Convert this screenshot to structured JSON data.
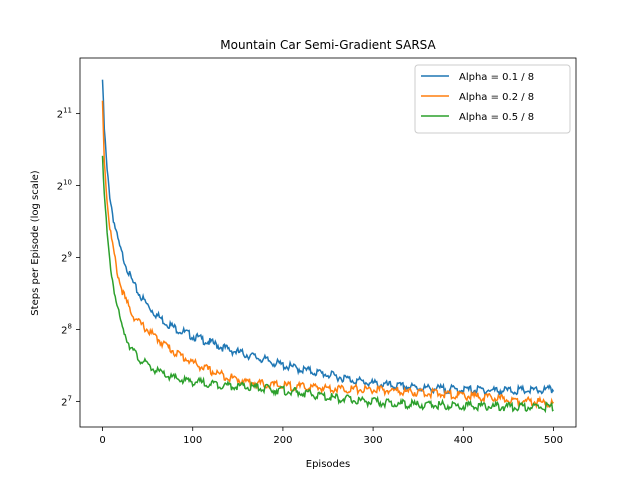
{
  "chart_data": {
    "type": "line",
    "title": "Mountain Car Semi-Gradient SARSA",
    "xlabel": "Episodes",
    "ylabel": "Steps per Episode (log scale)",
    "xlim": [
      -25,
      525
    ],
    "ylim": [
      100,
      3500
    ],
    "y_scale": "log2",
    "x_ticks": [
      0,
      100,
      200,
      300,
      400,
      500
    ],
    "y_ticks": [
      128,
      256,
      512,
      1024,
      2048
    ],
    "y_tick_base": "2",
    "y_tick_exponents": [
      "7",
      "8",
      "9",
      "10",
      "11"
    ],
    "grid": false,
    "legend_position": "top-right",
    "series": [
      {
        "name": "Alpha = 0.1 / 8",
        "color": "#1f77b4",
        "points": [
          [
            0,
            2900
          ],
          [
            2,
            1800
          ],
          [
            5,
            1200
          ],
          [
            8,
            950
          ],
          [
            12,
            760
          ],
          [
            16,
            640
          ],
          [
            20,
            560
          ],
          [
            25,
            500
          ],
          [
            30,
            440
          ],
          [
            35,
            400
          ],
          [
            40,
            370
          ],
          [
            50,
            330
          ],
          [
            60,
            300
          ],
          [
            70,
            280
          ],
          [
            80,
            265
          ],
          [
            90,
            255
          ],
          [
            100,
            245
          ],
          [
            120,
            230
          ],
          [
            140,
            215
          ],
          [
            160,
            205
          ],
          [
            180,
            195
          ],
          [
            200,
            185
          ],
          [
            220,
            178
          ],
          [
            240,
            172
          ],
          [
            260,
            166
          ],
          [
            280,
            160
          ],
          [
            300,
            155
          ],
          [
            320,
            152
          ],
          [
            340,
            150
          ],
          [
            360,
            148
          ],
          [
            380,
            147
          ],
          [
            400,
            146
          ],
          [
            420,
            146
          ],
          [
            440,
            145
          ],
          [
            460,
            145
          ],
          [
            480,
            145
          ],
          [
            500,
            146
          ]
        ]
      },
      {
        "name": "Alpha = 0.2 / 8",
        "color": "#ff7f0e",
        "points": [
          [
            0,
            2350
          ],
          [
            2,
            1350
          ],
          [
            5,
            900
          ],
          [
            8,
            700
          ],
          [
            12,
            560
          ],
          [
            16,
            460
          ],
          [
            20,
            400
          ],
          [
            25,
            350
          ],
          [
            30,
            320
          ],
          [
            35,
            295
          ],
          [
            40,
            280
          ],
          [
            50,
            260
          ],
          [
            60,
            240
          ],
          [
            70,
            225
          ],
          [
            80,
            210
          ],
          [
            90,
            200
          ],
          [
            100,
            190
          ],
          [
            120,
            175
          ],
          [
            140,
            165
          ],
          [
            160,
            158
          ],
          [
            180,
            154
          ],
          [
            200,
            152
          ],
          [
            220,
            150
          ],
          [
            240,
            149
          ],
          [
            260,
            148
          ],
          [
            280,
            147
          ],
          [
            300,
            146
          ],
          [
            320,
            145
          ],
          [
            340,
            143
          ],
          [
            360,
            142
          ],
          [
            380,
            140
          ],
          [
            400,
            138
          ],
          [
            420,
            136
          ],
          [
            440,
            134
          ],
          [
            460,
            132
          ],
          [
            480,
            130
          ],
          [
            500,
            128
          ]
        ]
      },
      {
        "name": "Alpha = 0.5 / 8",
        "color": "#2ca02c",
        "points": [
          [
            0,
            1450
          ],
          [
            2,
            950
          ],
          [
            5,
            650
          ],
          [
            8,
            500
          ],
          [
            12,
            400
          ],
          [
            16,
            330
          ],
          [
            20,
            280
          ],
          [
            25,
            250
          ],
          [
            30,
            225
          ],
          [
            35,
            210
          ],
          [
            40,
            198
          ],
          [
            50,
            185
          ],
          [
            60,
            175
          ],
          [
            70,
            168
          ],
          [
            80,
            163
          ],
          [
            90,
            160
          ],
          [
            100,
            158
          ],
          [
            120,
            155
          ],
          [
            140,
            152
          ],
          [
            160,
            150
          ],
          [
            180,
            148
          ],
          [
            200,
            145
          ],
          [
            220,
            142
          ],
          [
            240,
            138
          ],
          [
            260,
            135
          ],
          [
            280,
            132
          ],
          [
            300,
            130
          ],
          [
            320,
            128
          ],
          [
            340,
            127
          ],
          [
            360,
            126
          ],
          [
            380,
            126
          ],
          [
            400,
            125
          ],
          [
            420,
            125
          ],
          [
            440,
            124
          ],
          [
            460,
            124
          ],
          [
            480,
            124
          ],
          [
            500,
            124
          ]
        ]
      }
    ]
  }
}
